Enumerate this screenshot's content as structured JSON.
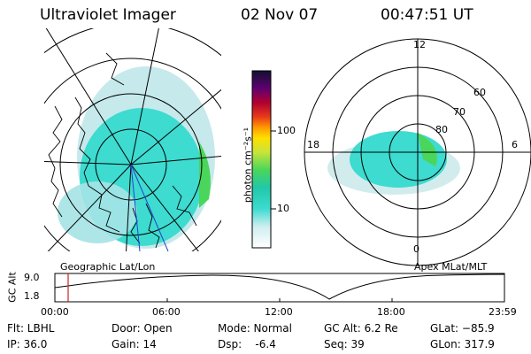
{
  "header": {
    "instrument": "Ultraviolet Imager",
    "date": "02 Nov 07",
    "time": "00:47:51 UT"
  },
  "left_panel": {
    "caption": "Geographic Lat/Lon"
  },
  "right_panel": {
    "caption": "Apex MLat/MLT",
    "mlt_labels": {
      "top": "12",
      "left": "18",
      "right": "6",
      "bottom": "0"
    },
    "lat_labels": [
      "60",
      "70",
      "80"
    ]
  },
  "colorbar": {
    "unit_label": "photon cm⁻²s⁻¹",
    "ticks": [
      "100",
      "10"
    ]
  },
  "altitude_plot": {
    "ylabel": "GC Alt",
    "y_ticks": [
      "9.0",
      "1.8"
    ],
    "x_ticks": [
      "00:00",
      "06:00",
      "12:00",
      "18:00",
      "23:59"
    ]
  },
  "status": {
    "filter": "Flt: LBHL",
    "ip": "IP: 36.0",
    "door": "Door: Open",
    "gain": "Gain: 14",
    "mode": "Mode: Normal",
    "dsp": "Dsp:    -6.4",
    "gc_alt": "GC Alt: 6.2 Re",
    "seq": "Seq: 39",
    "glat": "GLat: −85.9",
    "glon": "GLon: 317.9"
  },
  "colors": {
    "aurora_main": "#3ddbd0",
    "aurora_light": "#bfe8ea",
    "aurora_green": "#4ad65a",
    "marker_red": "#cc2222"
  }
}
